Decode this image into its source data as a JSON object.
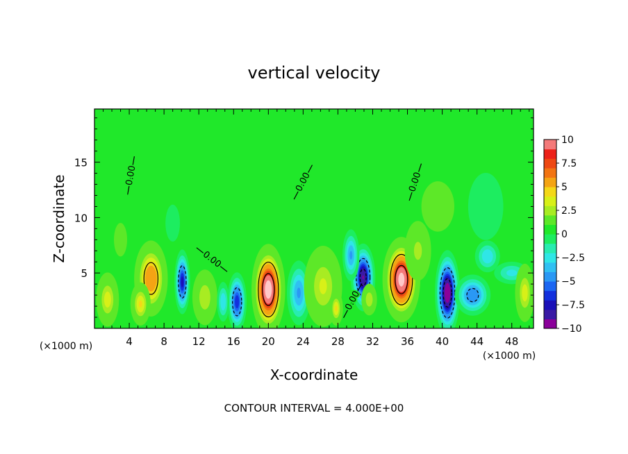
{
  "chart_data": {
    "type": "heatmap",
    "title": "vertical velocity",
    "xlabel": "X-coordinate",
    "ylabel": "Z-coordinate",
    "x_unit_left": "(×1000 m)",
    "x_unit_right": "(×1000 m)",
    "footer": "CONTOUR INTERVAL = 4.000E+00",
    "xlim": [
      0,
      50.5
    ],
    "ylim": [
      0,
      19.8
    ],
    "x_ticks": [
      4,
      8,
      12,
      16,
      20,
      24,
      28,
      32,
      36,
      40,
      44,
      48
    ],
    "y_ticks": [
      5,
      10,
      15
    ],
    "grid": false,
    "contour_interval": 4.0,
    "contour_labels": [
      {
        "text": "0.00",
        "x": 4.2,
        "y": 13.8,
        "angle": -80
      },
      {
        "text": "0.00",
        "x": 24.0,
        "y": 13.2,
        "angle": -62
      },
      {
        "text": "0.00",
        "x": 36.9,
        "y": 13.2,
        "angle": -72
      },
      {
        "text": "0.00",
        "x": 13.5,
        "y": 6.2,
        "angle": 38
      },
      {
        "text": "0.00",
        "x": 29.7,
        "y": 2.5,
        "angle": -62
      }
    ],
    "colorbar": {
      "ticks": [
        "10",
        "7.5",
        "5",
        "2.5",
        "0",
        "−2.5",
        "−5",
        "−7.5",
        "−10"
      ],
      "vmin": -10,
      "vmax": 10
    },
    "features": [
      {
        "x": 1.5,
        "z": 2.6,
        "sx": 0.7,
        "sz": 1.3,
        "amp": 3.5
      },
      {
        "x": 6.5,
        "z": 4.5,
        "sx": 0.9,
        "sz": 1.6,
        "amp": 6.0
      },
      {
        "x": 5.3,
        "z": 2.2,
        "sx": 0.6,
        "sz": 1.0,
        "amp": 4.0
      },
      {
        "x": 10.1,
        "z": 4.2,
        "sx": 0.4,
        "sz": 1.3,
        "amp": -7.5
      },
      {
        "x": 12.7,
        "z": 2.8,
        "sx": 0.8,
        "sz": 1.4,
        "amp": 3.0
      },
      {
        "x": 16.4,
        "z": 2.4,
        "sx": 0.5,
        "sz": 1.2,
        "amp": -7.0
      },
      {
        "x": 14.8,
        "z": 2.4,
        "sx": 0.4,
        "sz": 1.0,
        "amp": -3.0
      },
      {
        "x": 20.0,
        "z": 3.5,
        "sx": 0.8,
        "sz": 1.7,
        "amp": 11.5
      },
      {
        "x": 23.5,
        "z": 3.2,
        "sx": 0.7,
        "sz": 1.5,
        "amp": -4.0
      },
      {
        "x": 26.3,
        "z": 3.8,
        "sx": 1.2,
        "sz": 2.0,
        "amp": 3.2
      },
      {
        "x": 27.8,
        "z": 1.8,
        "sx": 0.4,
        "sz": 0.8,
        "amp": 4.0
      },
      {
        "x": 30.9,
        "z": 4.6,
        "sx": 0.6,
        "sz": 1.3,
        "amp": -9.5
      },
      {
        "x": 29.5,
        "z": 6.6,
        "sx": 0.5,
        "sz": 1.2,
        "amp": -4.0
      },
      {
        "x": 31.6,
        "z": 2.6,
        "sx": 0.5,
        "sz": 0.8,
        "amp": 3.0
      },
      {
        "x": 35.3,
        "z": 4.4,
        "sx": 0.9,
        "sz": 1.6,
        "amp": 11.0
      },
      {
        "x": 37.2,
        "z": 7.0,
        "sx": 0.9,
        "sz": 1.6,
        "amp": 2.5
      },
      {
        "x": 40.6,
        "z": 3.2,
        "sx": 0.6,
        "sz": 1.6,
        "amp": -11.0
      },
      {
        "x": 43.5,
        "z": 3.0,
        "sx": 1.0,
        "sz": 0.9,
        "amp": -5.0
      },
      {
        "x": 45.2,
        "z": 6.5,
        "sx": 0.8,
        "sz": 0.8,
        "amp": -3.0
      },
      {
        "x": 48.0,
        "z": 5.0,
        "sx": 1.2,
        "sz": 0.6,
        "amp": -2.5
      },
      {
        "x": 49.5,
        "z": 3.2,
        "sx": 0.6,
        "sz": 1.4,
        "amp": 3.5
      },
      {
        "x": 3.0,
        "z": 8.0,
        "sx": 1.0,
        "sz": 2.0,
        "amp": 0.8
      },
      {
        "x": 9.0,
        "z": 9.5,
        "sx": 1.5,
        "sz": 3.0,
        "amp": -0.7
      },
      {
        "x": 39.5,
        "z": 11.0,
        "sx": 2.5,
        "sz": 3.0,
        "amp": 0.8
      },
      {
        "x": 45.0,
        "z": 11.0,
        "sx": 2.0,
        "sz": 3.0,
        "amp": -1.0
      }
    ],
    "colormap": [
      [
        -10,
        "#8b009a"
      ],
      [
        -9,
        "#3a1aa5"
      ],
      [
        -8,
        "#1a10b8"
      ],
      [
        -7,
        "#1230dd"
      ],
      [
        -6,
        "#1b66f2"
      ],
      [
        -5,
        "#2a98f4"
      ],
      [
        -4,
        "#30c0f2"
      ],
      [
        -3,
        "#2fe6e6"
      ],
      [
        -2,
        "#28ecb0"
      ],
      [
        -1,
        "#1ded60"
      ],
      [
        0,
        "#20e82a"
      ],
      [
        1,
        "#5de828"
      ],
      [
        2,
        "#a8ec22"
      ],
      [
        3,
        "#d8f018"
      ],
      [
        4,
        "#f4d818"
      ],
      [
        5,
        "#f4a414"
      ],
      [
        6,
        "#f27412"
      ],
      [
        7,
        "#ee4812"
      ],
      [
        8,
        "#ec2018"
      ],
      [
        9,
        "#f47a7a"
      ],
      [
        10,
        "#ffc8c8"
      ],
      [
        12,
        "#ffffff"
      ]
    ]
  }
}
